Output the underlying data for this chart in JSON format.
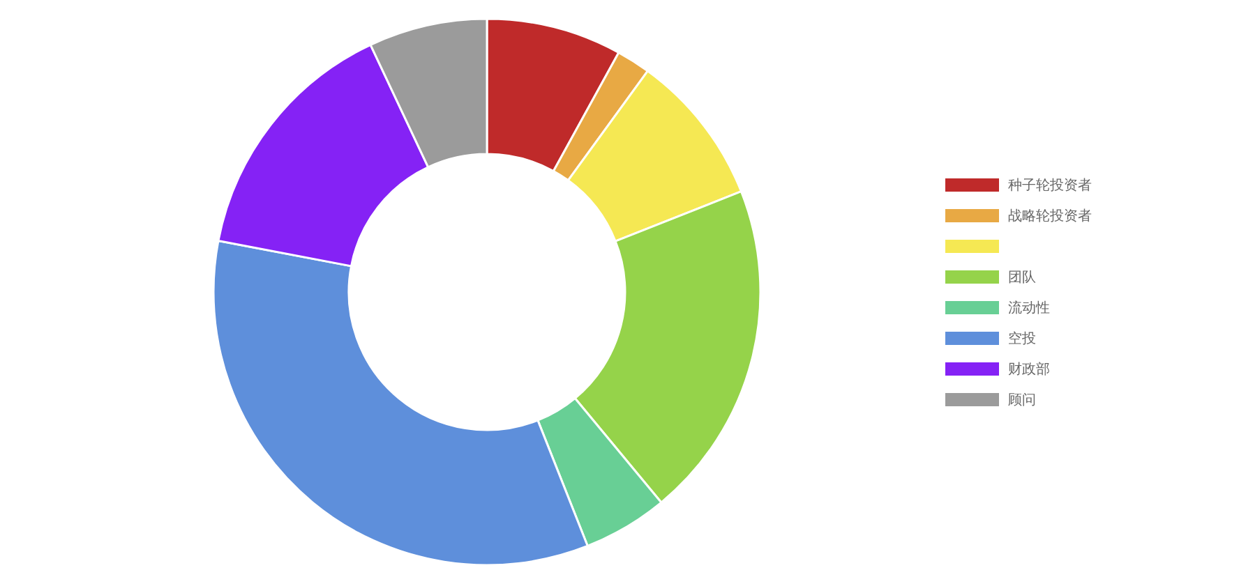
{
  "chart_data": {
    "type": "donut",
    "categories": [
      "种子轮投资者",
      "战略轮投资者",
      null,
      "团队",
      "流动性",
      "空投",
      "财政部",
      "顾问"
    ],
    "values": [
      8,
      2,
      9,
      20,
      5,
      34,
      15,
      7
    ],
    "colors": [
      "#bf2a2a",
      "#e8a944",
      "#f5e853",
      "#95d34a",
      "#68cf95",
      "#5e8fdb",
      "#8522f5",
      "#9b9b9b"
    ],
    "legend": "right"
  }
}
